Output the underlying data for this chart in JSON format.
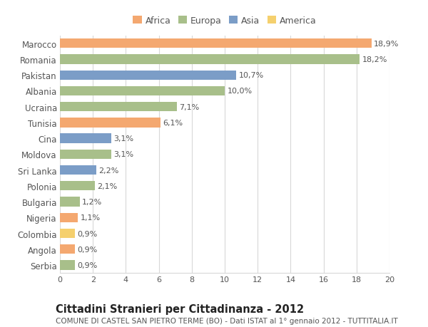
{
  "countries": [
    "Marocco",
    "Romania",
    "Pakistan",
    "Albania",
    "Ucraina",
    "Tunisia",
    "Cina",
    "Moldova",
    "Sri Lanka",
    "Polonia",
    "Bulgaria",
    "Nigeria",
    "Colombia",
    "Angola",
    "Serbia"
  ],
  "values": [
    18.9,
    18.2,
    10.7,
    10.0,
    7.1,
    6.1,
    3.1,
    3.1,
    2.2,
    2.1,
    1.2,
    1.1,
    0.9,
    0.9,
    0.9
  ],
  "labels": [
    "18,9%",
    "18,2%",
    "10,7%",
    "10,0%",
    "7,1%",
    "6,1%",
    "3,1%",
    "3,1%",
    "2,2%",
    "2,1%",
    "1,2%",
    "1,1%",
    "0,9%",
    "0,9%",
    "0,9%"
  ],
  "continents": [
    "Africa",
    "Europa",
    "Asia",
    "Europa",
    "Europa",
    "Africa",
    "Asia",
    "Europa",
    "Asia",
    "Europa",
    "Europa",
    "Africa",
    "America",
    "Africa",
    "Europa"
  ],
  "colors": {
    "Africa": "#F4A870",
    "Europa": "#A8BF8A",
    "Asia": "#7B9DC7",
    "America": "#F5D06E"
  },
  "legend_order": [
    "Africa",
    "Europa",
    "Asia",
    "America"
  ],
  "title": "Cittadini Stranieri per Cittadinanza - 2012",
  "subtitle": "COMUNE DI CASTEL SAN PIETRO TERME (BO) - Dati ISTAT al 1° gennaio 2012 - TUTTITALIA.IT",
  "xlim": [
    0,
    20
  ],
  "xticks": [
    0,
    2,
    4,
    6,
    8,
    10,
    12,
    14,
    16,
    18,
    20
  ],
  "bg_color": "#FFFFFF",
  "grid_color": "#D8D8D8",
  "bar_height": 0.6,
  "label_fontsize": 8.0,
  "tick_fontsize": 8.0,
  "ytick_fontsize": 8.5,
  "title_fontsize": 10.5,
  "subtitle_fontsize": 7.5,
  "legend_fontsize": 9.0
}
